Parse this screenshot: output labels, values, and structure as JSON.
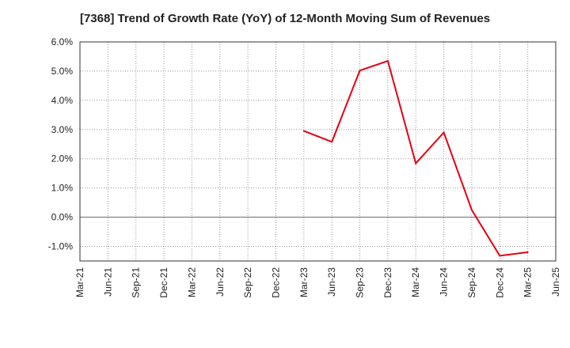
{
  "chart_data": {
    "type": "line",
    "title": "[7368]  Trend of Growth Rate (YoY) of 12-Month Moving Sum of Revenues",
    "xlabel": "",
    "ylabel": "",
    "x_ticks": [
      "Mar-21",
      "Jun-21",
      "Sep-21",
      "Dec-21",
      "Mar-22",
      "Jun-22",
      "Sep-22",
      "Dec-22",
      "Mar-23",
      "Jun-23",
      "Sep-23",
      "Dec-23",
      "Mar-24",
      "Jun-24",
      "Sep-24",
      "Dec-24",
      "Mar-25",
      "Jun-25"
    ],
    "y_ticks": [
      "6.0%",
      "5.0%",
      "4.0%",
      "3.0%",
      "2.0%",
      "1.0%",
      "0.0%",
      "-1.0%"
    ],
    "y_tick_values": [
      6,
      5,
      4,
      3,
      2,
      1,
      0,
      -1
    ],
    "ylim": [
      -1.5,
      6.0
    ],
    "grid": true,
    "series": [
      {
        "color": "#e60012",
        "x": [
          "Mar-23",
          "Jun-23",
          "Sep-23",
          "Dec-23",
          "Mar-24",
          "Jun-24",
          "Sep-24",
          "Dec-24",
          "Mar-25"
        ],
        "values": [
          2.95,
          2.58,
          5.02,
          5.35,
          1.84,
          2.9,
          0.25,
          -1.32,
          -1.2
        ]
      }
    ]
  }
}
